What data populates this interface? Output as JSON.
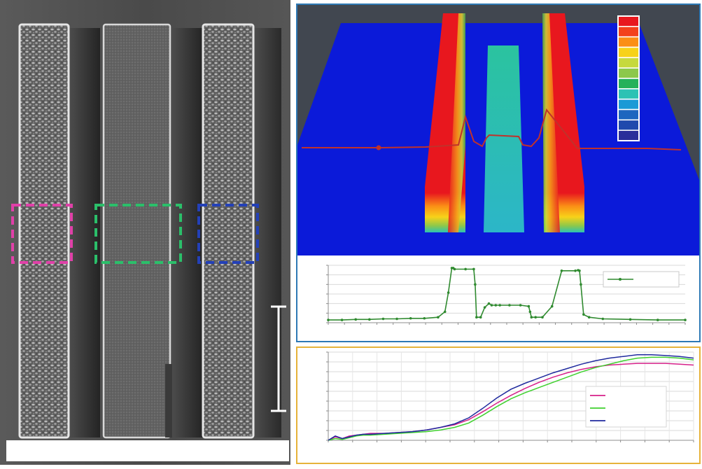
{
  "sem_panel": {
    "pillars": 3,
    "roi_boxes": [
      {
        "name": "left",
        "color": "#e040a8"
      },
      {
        "name": "center",
        "color": "#2bbf6a"
      },
      {
        "name": "right",
        "color": "#2340b8"
      }
    ],
    "scale_bar_color": "#ffffff",
    "caption_box_color": "#ffffff"
  },
  "height_map": {
    "palette": [
      "#e8171e",
      "#f3411c",
      "#fb8e16",
      "#f7d219",
      "#c6d93d",
      "#8cc84b",
      "#25b15a",
      "#2cc2b4",
      "#1b9ad6",
      "#1d66bf",
      "#2049ad",
      "#2a2e9a"
    ],
    "background_color": "#0b1ad9",
    "profile_line_color": "#c0322b"
  },
  "chart_data": [
    {
      "type": "line",
      "title": "",
      "xlabel": "",
      "ylabel": "",
      "legend": "top-right",
      "grid": true,
      "series": [
        {
          "name": "",
          "color": "#2f8a2f",
          "x": [
            0,
            20,
            40,
            60,
            80,
            100,
            120,
            140,
            160,
            170,
            175,
            180,
            182,
            184,
            200,
            212,
            214,
            216,
            222,
            228,
            234,
            238,
            244,
            250,
            264,
            280,
            292,
            294,
            296,
            302,
            312,
            326,
            340,
            360,
            364,
            366,
            368,
            372,
            380,
            400,
            440,
            480,
            520
          ],
          "y": [
            0.05,
            0.05,
            0.06,
            0.06,
            0.07,
            0.07,
            0.08,
            0.08,
            0.1,
            0.2,
            0.55,
            1.0,
            1.0,
            0.98,
            0.98,
            0.98,
            0.7,
            0.1,
            0.1,
            0.28,
            0.35,
            0.32,
            0.32,
            0.32,
            0.32,
            0.32,
            0.3,
            0.2,
            0.1,
            0.1,
            0.1,
            0.3,
            0.95,
            0.95,
            0.96,
            0.95,
            0.7,
            0.15,
            0.1,
            0.07,
            0.06,
            0.05,
            0.05
          ]
        }
      ]
    },
    {
      "type": "line",
      "title": "",
      "xlabel": "",
      "ylabel": "",
      "legend": "center-right",
      "grid": true,
      "series": [
        {
          "name": "",
          "color": "#d6208a",
          "x": [
            0,
            10,
            20,
            30,
            40,
            50,
            60,
            80,
            100,
            120,
            140,
            160,
            180,
            200,
            220,
            240,
            260,
            280,
            300,
            320,
            340,
            360,
            380,
            400,
            420,
            440,
            460,
            480,
            500,
            520
          ],
          "y": [
            0.0,
            0.04,
            0.02,
            0.05,
            0.06,
            0.07,
            0.08,
            0.08,
            0.09,
            0.1,
            0.12,
            0.15,
            0.18,
            0.24,
            0.33,
            0.43,
            0.52,
            0.6,
            0.67,
            0.73,
            0.78,
            0.82,
            0.85,
            0.87,
            0.88,
            0.89,
            0.89,
            0.89,
            0.88,
            0.87
          ]
        },
        {
          "name": "",
          "color": "#3fd12e",
          "x": [
            0,
            10,
            20,
            30,
            40,
            50,
            60,
            80,
            100,
            120,
            140,
            160,
            180,
            200,
            220,
            240,
            260,
            280,
            300,
            320,
            340,
            360,
            380,
            400,
            420,
            440,
            460,
            480,
            500,
            520
          ],
          "y": [
            0.0,
            0.02,
            0.01,
            0.03,
            0.05,
            0.06,
            0.06,
            0.07,
            0.08,
            0.09,
            0.1,
            0.12,
            0.15,
            0.2,
            0.29,
            0.39,
            0.48,
            0.55,
            0.61,
            0.67,
            0.73,
            0.79,
            0.84,
            0.88,
            0.92,
            0.95,
            0.96,
            0.96,
            0.95,
            0.93
          ]
        },
        {
          "name": "",
          "color": "#1f2a9e",
          "x": [
            0,
            10,
            20,
            30,
            40,
            50,
            60,
            80,
            100,
            120,
            140,
            160,
            180,
            200,
            220,
            240,
            260,
            280,
            300,
            320,
            340,
            360,
            380,
            400,
            420,
            440,
            460,
            480,
            500,
            520
          ],
          "y": [
            0.0,
            0.05,
            0.02,
            0.04,
            0.06,
            0.07,
            0.07,
            0.08,
            0.09,
            0.1,
            0.12,
            0.15,
            0.19,
            0.26,
            0.37,
            0.49,
            0.59,
            0.66,
            0.72,
            0.78,
            0.83,
            0.88,
            0.92,
            0.95,
            0.97,
            0.99,
            0.99,
            0.98,
            0.97,
            0.95
          ]
        }
      ]
    }
  ]
}
